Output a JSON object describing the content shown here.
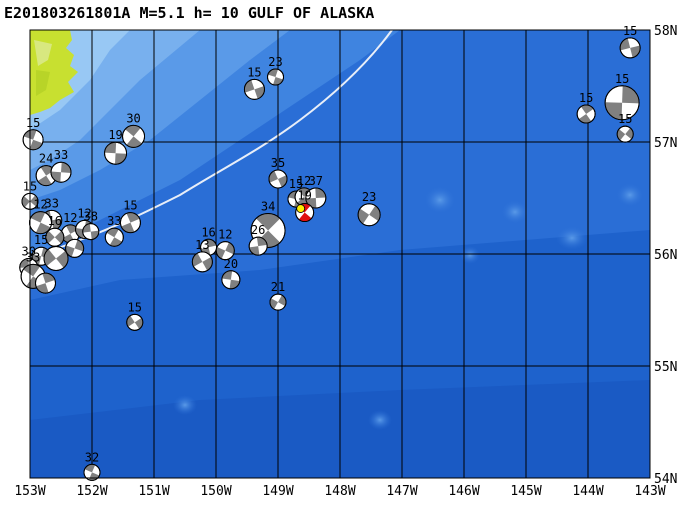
{
  "title": "E201803261801A M=5.1 h= 10 GULF OF ALASKA",
  "colors": {
    "ocean_deep": "#1c5ec8",
    "ocean_mid": "#2a6ed6",
    "shelf": "#4a90e8",
    "shallow": "#8cc0f2",
    "land": "#c8e030",
    "grid": "#000000",
    "highlight": "#e01010"
  },
  "axes": {
    "lon_ticks": [
      "153W",
      "152W",
      "151W",
      "150W",
      "149W",
      "148W",
      "147W",
      "146W",
      "145W",
      "144W",
      "143W"
    ],
    "lat_ticks": [
      "58N",
      "57N",
      "56N",
      "55N",
      "54N"
    ],
    "lon_range": [
      -153,
      -143
    ],
    "lat_range": [
      54,
      58
    ]
  },
  "events": [
    {
      "lon": -152.95,
      "lat": 57.02,
      "depth": "15",
      "r": 10
    },
    {
      "lon": -152.74,
      "lat": 56.7,
      "depth": "24",
      "r": 10
    },
    {
      "lon": -152.5,
      "lat": 56.73,
      "depth": "33",
      "r": 10
    },
    {
      "lon": -153.0,
      "lat": 56.47,
      "depth": "15",
      "r": 8
    },
    {
      "lon": -152.65,
      "lat": 56.3,
      "depth": "33",
      "r": 10
    },
    {
      "lon": -152.83,
      "lat": 56.28,
      "depth": "12",
      "r": 11
    },
    {
      "lon": -152.35,
      "lat": 56.18,
      "depth": "12",
      "r": 9
    },
    {
      "lon": -152.12,
      "lat": 56.22,
      "depth": "12",
      "r": 9
    },
    {
      "lon": -152.6,
      "lat": 56.15,
      "depth": "16",
      "r": 9
    },
    {
      "lon": -152.02,
      "lat": 56.2,
      "depth": "38",
      "r": 8
    },
    {
      "lon": -151.64,
      "lat": 56.15,
      "depth": "33",
      "r": 9
    },
    {
      "lon": -151.38,
      "lat": 56.28,
      "depth": "15",
      "r": 10
    },
    {
      "lon": -152.82,
      "lat": 55.98,
      "depth": "15",
      "r": 9
    },
    {
      "lon": -152.58,
      "lat": 55.96,
      "depth": "",
      "r": 12
    },
    {
      "lon": -153.02,
      "lat": 55.88,
      "depth": "30",
      "r": 9
    },
    {
      "lon": -152.95,
      "lat": 55.8,
      "depth": "33",
      "r": 12
    },
    {
      "lon": -152.75,
      "lat": 55.74,
      "depth": "",
      "r": 10
    },
    {
      "lon": -152.28,
      "lat": 56.05,
      "depth": "",
      "r": 9
    },
    {
      "lon": -151.31,
      "lat": 55.39,
      "depth": "15",
      "r": 8
    },
    {
      "lon": -151.62,
      "lat": 56.9,
      "depth": "19",
      "r": 11
    },
    {
      "lon": -151.33,
      "lat": 57.05,
      "depth": "30",
      "r": 11
    },
    {
      "lon": -150.12,
      "lat": 56.06,
      "depth": "16",
      "r": 8
    },
    {
      "lon": -149.85,
      "lat": 56.03,
      "depth": "12",
      "r": 9
    },
    {
      "lon": -150.22,
      "lat": 55.93,
      "depth": "13",
      "r": 10
    },
    {
      "lon": -149.76,
      "lat": 55.77,
      "depth": "20",
      "r": 9
    },
    {
      "lon": -149.16,
      "lat": 56.21,
      "depth": "34",
      "r": 17
    },
    {
      "lon": -149.32,
      "lat": 56.07,
      "depth": "26",
      "r": 9
    },
    {
      "lon": -149.0,
      "lat": 55.57,
      "depth": "21",
      "r": 8
    },
    {
      "lon": -149.0,
      "lat": 56.67,
      "depth": "35",
      "r": 9
    },
    {
      "lon": -148.71,
      "lat": 56.49,
      "depth": "15",
      "r": 8
    },
    {
      "lon": -148.58,
      "lat": 56.51,
      "depth": "12",
      "r": 9
    },
    {
      "lon": -148.39,
      "lat": 56.5,
      "depth": "37",
      "r": 10
    },
    {
      "lon": -147.53,
      "lat": 56.35,
      "depth": "23",
      "r": 11
    },
    {
      "lon": -149.38,
      "lat": 57.47,
      "depth": "15",
      "r": 10
    },
    {
      "lon": -149.04,
      "lat": 57.58,
      "depth": "23",
      "r": 8
    },
    {
      "lon": -144.03,
      "lat": 57.25,
      "depth": "15",
      "r": 9
    },
    {
      "lon": -143.45,
      "lat": 57.35,
      "depth": "15",
      "r": 17
    },
    {
      "lon": -143.4,
      "lat": 57.07,
      "depth": "15",
      "r": 8
    },
    {
      "lon": -143.32,
      "lat": 57.84,
      "depth": "15",
      "r": 10
    },
    {
      "lon": -152.0,
      "lat": 54.05,
      "depth": "32",
      "r": 8
    }
  ],
  "main_event": {
    "lon": -148.57,
    "lat": 56.37,
    "depth": "19"
  }
}
